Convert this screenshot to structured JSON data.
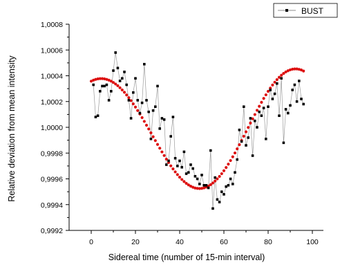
{
  "chart_data": {
    "type": "scatter",
    "title": "",
    "xlabel": "Sidereal time (number of 15-min interval)",
    "ylabel": "Relative deviation from mean intensity",
    "xlim": [
      -10,
      105
    ],
    "ylim": [
      0.9992,
      1.0008
    ],
    "x_ticks": [
      0,
      20,
      40,
      60,
      80,
      100
    ],
    "x_tick_labels": [
      "0",
      "20",
      "40",
      "60",
      "80",
      "100"
    ],
    "y_ticks": [
      0.9992,
      0.9994,
      0.9996,
      0.9998,
      1.0,
      1.0002,
      1.0004,
      1.0006,
      1.0008
    ],
    "y_tick_labels": [
      "0,9992",
      "0,9994",
      "0,9996",
      "0,9998",
      "1,0000",
      "1,0002",
      "1,0004",
      "1,0006",
      "1,0008"
    ],
    "legend": {
      "position": "top-right",
      "entries": [
        "BUST"
      ]
    },
    "series": [
      {
        "name": "BUST",
        "style": "black squares joined by thin gray line",
        "color": "#000000",
        "line_color": "#9a9a9a",
        "x": [
          1,
          2,
          3,
          4,
          5,
          6,
          7,
          8,
          9,
          10,
          11,
          12,
          13,
          14,
          15,
          16,
          17,
          18,
          19,
          20,
          21,
          22,
          23,
          24,
          25,
          26,
          27,
          28,
          29,
          30,
          31,
          32,
          33,
          34,
          35,
          36,
          37,
          38,
          39,
          40,
          41,
          42,
          43,
          44,
          45,
          46,
          47,
          48,
          49,
          50,
          51,
          52,
          53,
          54,
          55,
          56,
          57,
          58,
          59,
          60,
          61,
          62,
          63,
          64,
          65,
          66,
          67,
          68,
          69,
          70,
          71,
          72,
          73,
          74,
          75,
          76,
          77,
          78,
          79,
          80,
          81,
          82,
          83,
          84,
          85,
          86,
          87,
          88,
          89,
          90,
          91,
          92,
          93,
          94,
          95,
          96
        ],
        "y": [
          1.00033,
          1.00008,
          1.00009,
          1.00028,
          1.00032,
          1.00032,
          1.00033,
          1.00021,
          1.00028,
          1.00044,
          1.00058,
          1.00046,
          1.00036,
          1.00038,
          1.00043,
          1.00033,
          1.00021,
          1.00007,
          1.00027,
          1.00038,
          1.00021,
          1.00011,
          1.00019,
          1.00049,
          1.00021,
          1.00012,
          0.99991,
          1.00013,
          1.00016,
          1.00032,
          0.99999,
          1.00007,
          1.00006,
          0.99971,
          0.99974,
          0.99993,
          1.00008,
          0.99976,
          0.9997,
          0.99974,
          0.99969,
          0.99981,
          0.99964,
          0.99965,
          0.99971,
          0.99968,
          0.99962,
          0.9996,
          0.99956,
          0.99963,
          0.99955,
          0.99955,
          0.99953,
          0.99982,
          0.99937,
          0.99961,
          0.99944,
          0.99942,
          0.9995,
          0.99948,
          0.99954,
          0.99955,
          0.9996,
          0.99956,
          0.99965,
          0.99975,
          0.99998,
          0.99989,
          1.00016,
          0.99986,
          0.99992,
          1.00007,
          0.99978,
          1.00005,
          1.0,
          1.00012,
          1.00009,
          1.00015,
          0.99991,
          1.00016,
          1.00029,
          1.00022,
          1.00026,
          1.00034,
          1.00009,
          1.00038,
          0.99988,
          1.00014,
          1.00011,
          1.00017,
          1.00029,
          1.00033,
          1.0002,
          1.00036,
          1.00022,
          1.00018
        ]
      },
      {
        "name": "",
        "style": "red dots (fit)",
        "color": "#dd1111",
        "x": [
          0,
          1,
          2,
          3,
          4,
          5,
          6,
          7,
          8,
          9,
          10,
          11,
          12,
          13,
          14,
          15,
          16,
          17,
          18,
          19,
          20,
          21,
          22,
          23,
          24,
          25,
          26,
          27,
          28,
          29,
          30,
          31,
          32,
          33,
          34,
          35,
          36,
          37,
          38,
          39,
          40,
          41,
          42,
          43,
          44,
          45,
          46,
          47,
          48,
          49,
          50,
          51,
          52,
          53,
          54,
          55,
          56,
          57,
          58,
          59,
          60,
          61,
          62,
          63,
          64,
          65,
          66,
          67,
          68,
          69,
          70,
          71,
          72,
          73,
          74,
          75,
          76,
          77,
          78,
          79,
          80,
          81,
          82,
          83,
          84,
          85,
          86,
          87,
          88,
          89,
          90,
          91,
          92,
          93,
          94,
          95,
          96
        ],
        "y": [
          1.000358,
          1.000366,
          1.000372,
          1.000376,
          1.000378,
          1.000378,
          1.000376,
          1.000372,
          1.000366,
          1.000358,
          1.000348,
          1.000336,
          1.000323,
          1.000307,
          1.00029,
          1.000272,
          1.000251,
          1.00023,
          1.000207,
          1.000182,
          1.000157,
          1.00013,
          1.000103,
          1.000075,
          1.000046,
          1.000016,
          0.999987,
          0.999957,
          0.999927,
          0.999897,
          0.999867,
          0.999838,
          0.999809,
          0.999781,
          0.999753,
          0.999727,
          0.999701,
          0.999677,
          0.999654,
          0.999633,
          0.999613,
          0.999595,
          0.999579,
          0.999565,
          0.999553,
          0.999543,
          0.999535,
          0.999529,
          0.999526,
          0.999525,
          0.999526,
          0.99953,
          0.999536,
          0.999544,
          0.999555,
          0.999568,
          0.999583,
          0.9996,
          0.999619,
          0.99964,
          0.999663,
          0.999688,
          0.999714,
          0.999742,
          0.999771,
          0.999801,
          0.999833,
          0.999865,
          0.999898,
          0.999931,
          0.999965,
          0.999999,
          1.000033,
          1.000066,
          1.000099,
          1.000132,
          1.000163,
          1.000194,
          1.000224,
          1.000252,
          1.000279,
          1.000304,
          1.000328,
          1.00035,
          1.00037,
          1.000388,
          1.000404,
          1.000418,
          1.00043,
          1.000439,
          1.000446,
          1.000451,
          1.000453,
          1.000453,
          1.00045,
          1.000445,
          1.000437
        ]
      }
    ]
  }
}
